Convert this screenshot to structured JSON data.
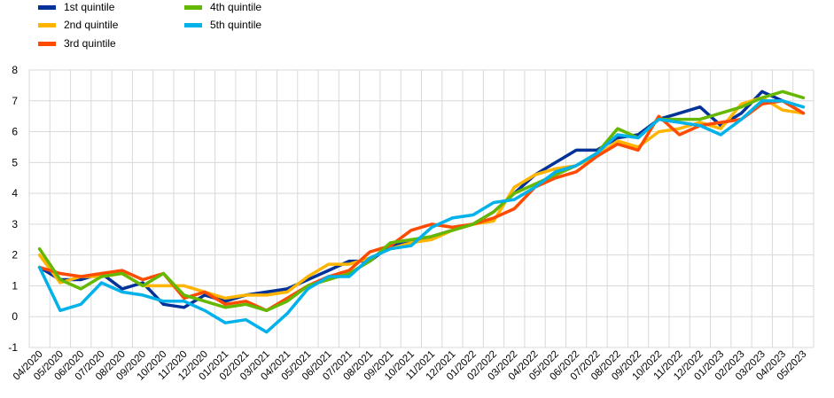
{
  "chart_data": {
    "type": "line",
    "title": "",
    "xlabel": "",
    "ylabel": "",
    "ylim": [
      -1,
      8
    ],
    "yticks": [
      -1,
      0,
      1,
      2,
      3,
      4,
      5,
      6,
      7,
      8
    ],
    "grid": true,
    "legend_position": "top-left",
    "categories": [
      "04/2020",
      "05/2020",
      "06/2020",
      "07/2020",
      "08/2020",
      "09/2020",
      "10/2020",
      "11/2020",
      "12/2020",
      "01/2021",
      "02/2021",
      "03/2021",
      "04/2021",
      "05/2021",
      "06/2021",
      "07/2021",
      "08/2021",
      "09/2021",
      "10/2021",
      "11/2021",
      "12/2021",
      "01/2022",
      "02/2022",
      "03/2022",
      "04/2022",
      "05/2022",
      "06/2022",
      "07/2022",
      "08/2022",
      "09/2022",
      "10/2022",
      "11/2022",
      "12/2022",
      "01/2023",
      "02/2023",
      "03/2023",
      "04/2023",
      "05/2023"
    ],
    "series": [
      {
        "name": "1st quintile",
        "color": "#003299",
        "values": [
          1.6,
          1.2,
          1.2,
          1.4,
          0.9,
          1.1,
          0.4,
          0.3,
          0.7,
          0.5,
          0.7,
          0.8,
          0.9,
          1.2,
          1.5,
          1.8,
          1.8,
          2.3,
          2.4,
          2.6,
          2.8,
          3.0,
          3.4,
          4.0,
          4.6,
          5.0,
          5.4,
          5.4,
          5.8,
          5.9,
          6.4,
          6.6,
          6.8,
          6.2,
          6.6,
          7.3,
          7.0,
          6.6
        ]
      },
      {
        "name": "2nd quintile",
        "color": "#FFB400",
        "values": [
          2.0,
          1.1,
          1.3,
          1.3,
          1.4,
          1.0,
          1.0,
          1.0,
          0.8,
          0.6,
          0.7,
          0.7,
          0.8,
          1.3,
          1.7,
          1.7,
          1.9,
          2.2,
          2.4,
          2.5,
          2.8,
          3.0,
          3.1,
          4.2,
          4.6,
          4.8,
          4.9,
          5.2,
          5.7,
          5.5,
          6.0,
          6.1,
          6.3,
          6.1,
          6.9,
          7.1,
          6.7,
          6.6
        ]
      },
      {
        "name": "3rd quintile",
        "color": "#FF4B00",
        "values": [
          1.6,
          1.4,
          1.3,
          1.4,
          1.5,
          1.2,
          1.4,
          0.6,
          0.8,
          0.4,
          0.5,
          0.2,
          0.6,
          1.0,
          1.3,
          1.5,
          2.1,
          2.3,
          2.8,
          3.0,
          2.9,
          3.0,
          3.2,
          3.5,
          4.2,
          4.5,
          4.7,
          5.2,
          5.6,
          5.4,
          6.5,
          5.9,
          6.2,
          6.3,
          6.4,
          6.9,
          7.0,
          6.6
        ]
      },
      {
        "name": "4th quintile",
        "color": "#65B800",
        "values": [
          2.2,
          1.2,
          0.9,
          1.3,
          1.4,
          1.0,
          1.4,
          0.7,
          0.5,
          0.3,
          0.4,
          0.2,
          0.5,
          1.0,
          1.2,
          1.4,
          1.8,
          2.4,
          2.5,
          2.6,
          2.8,
          3.0,
          3.4,
          4.0,
          4.3,
          4.6,
          4.9,
          5.3,
          6.1,
          5.8,
          6.4,
          6.4,
          6.4,
          6.6,
          6.8,
          7.1,
          7.3,
          7.1
        ]
      },
      {
        "name": "5th quintile",
        "color": "#00B1EA",
        "values": [
          1.6,
          0.2,
          0.4,
          1.1,
          0.8,
          0.7,
          0.5,
          0.5,
          0.2,
          -0.2,
          -0.1,
          -0.5,
          0.1,
          0.9,
          1.3,
          1.3,
          1.9,
          2.2,
          2.3,
          2.9,
          3.2,
          3.3,
          3.7,
          3.8,
          4.2,
          4.7,
          4.9,
          5.3,
          5.9,
          5.8,
          6.4,
          6.3,
          6.2,
          5.9,
          6.4,
          7.0,
          7.0,
          6.8
        ]
      }
    ]
  }
}
